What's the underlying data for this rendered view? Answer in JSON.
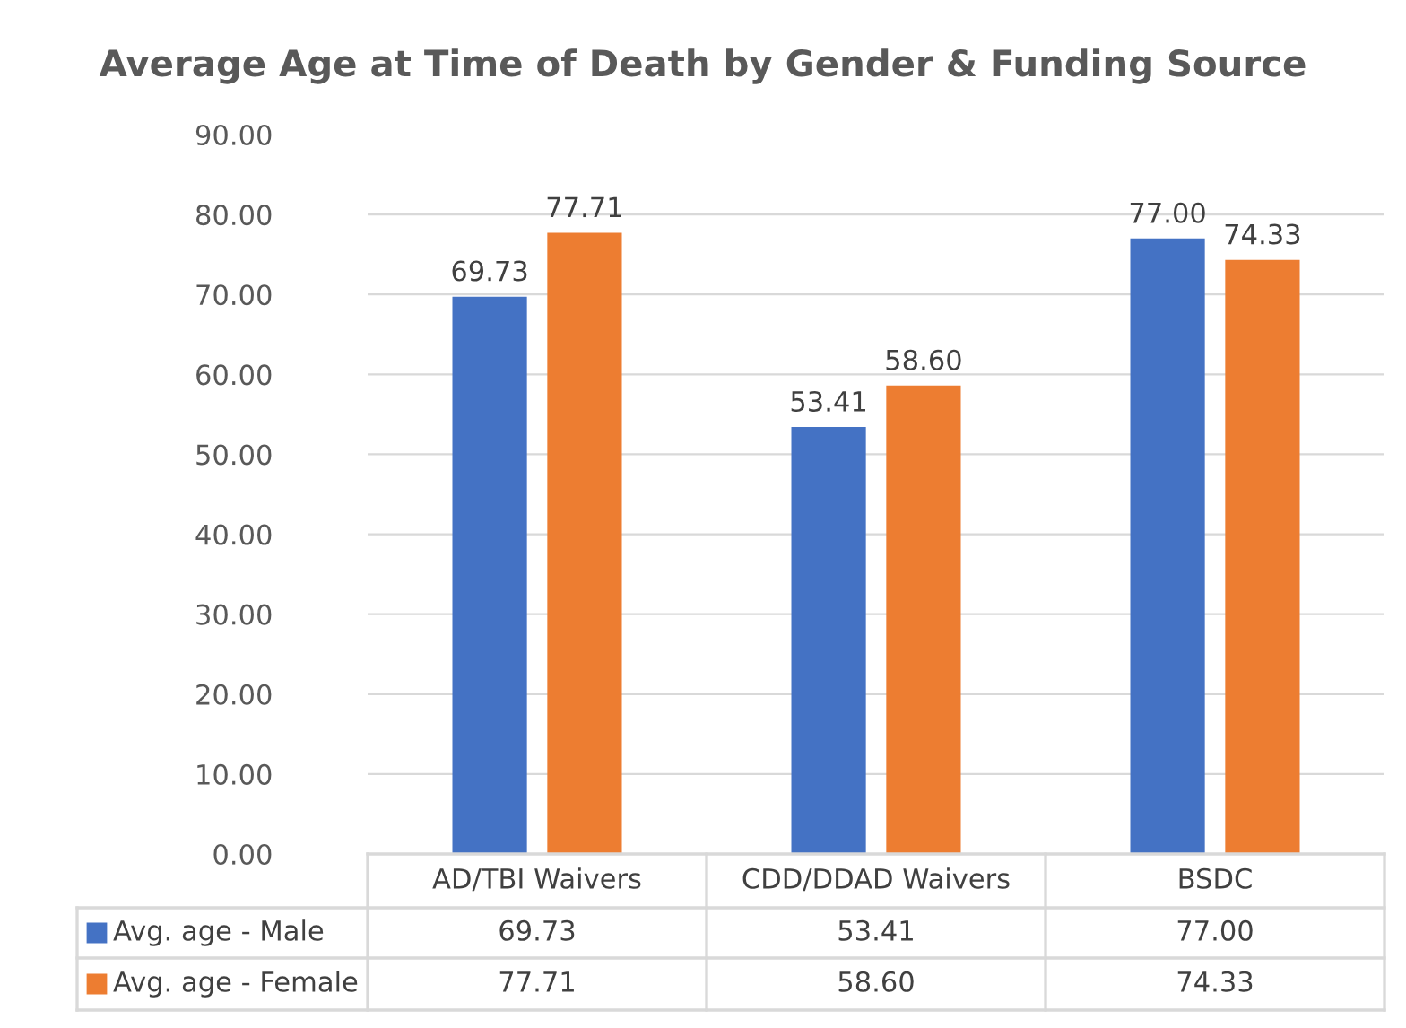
{
  "chart_data": {
    "type": "bar",
    "title": "Average Age at Time of Death by Gender & Funding Source",
    "categories": [
      "AD/TBI Waivers",
      "CDD/DDAD Waivers",
      "BSDC"
    ],
    "series": [
      {
        "name": "Avg. age - Male",
        "color": "#4472c4",
        "values": [
          69.73,
          53.41,
          77.0
        ],
        "value_labels": [
          "69.73",
          "53.41",
          "77.00"
        ]
      },
      {
        "name": "Avg. age - Female",
        "color": "#ed7d31",
        "values": [
          77.71,
          58.6,
          74.33
        ],
        "value_labels": [
          "77.71",
          "58.60",
          "74.33"
        ]
      }
    ],
    "ylim": [
      0,
      90
    ],
    "yticks": [
      {
        "value": 0,
        "label": "0.00"
      },
      {
        "value": 10,
        "label": "10.00"
      },
      {
        "value": 20,
        "label": "20.00"
      },
      {
        "value": 30,
        "label": "30.00"
      },
      {
        "value": 40,
        "label": "40.00"
      },
      {
        "value": 50,
        "label": "50.00"
      },
      {
        "value": 60,
        "label": "60.00"
      },
      {
        "value": 70,
        "label": "70.00"
      },
      {
        "value": 80,
        "label": "80.00"
      },
      {
        "value": 90,
        "label": "90.00"
      }
    ],
    "grid": "y",
    "legend": "bottom"
  }
}
